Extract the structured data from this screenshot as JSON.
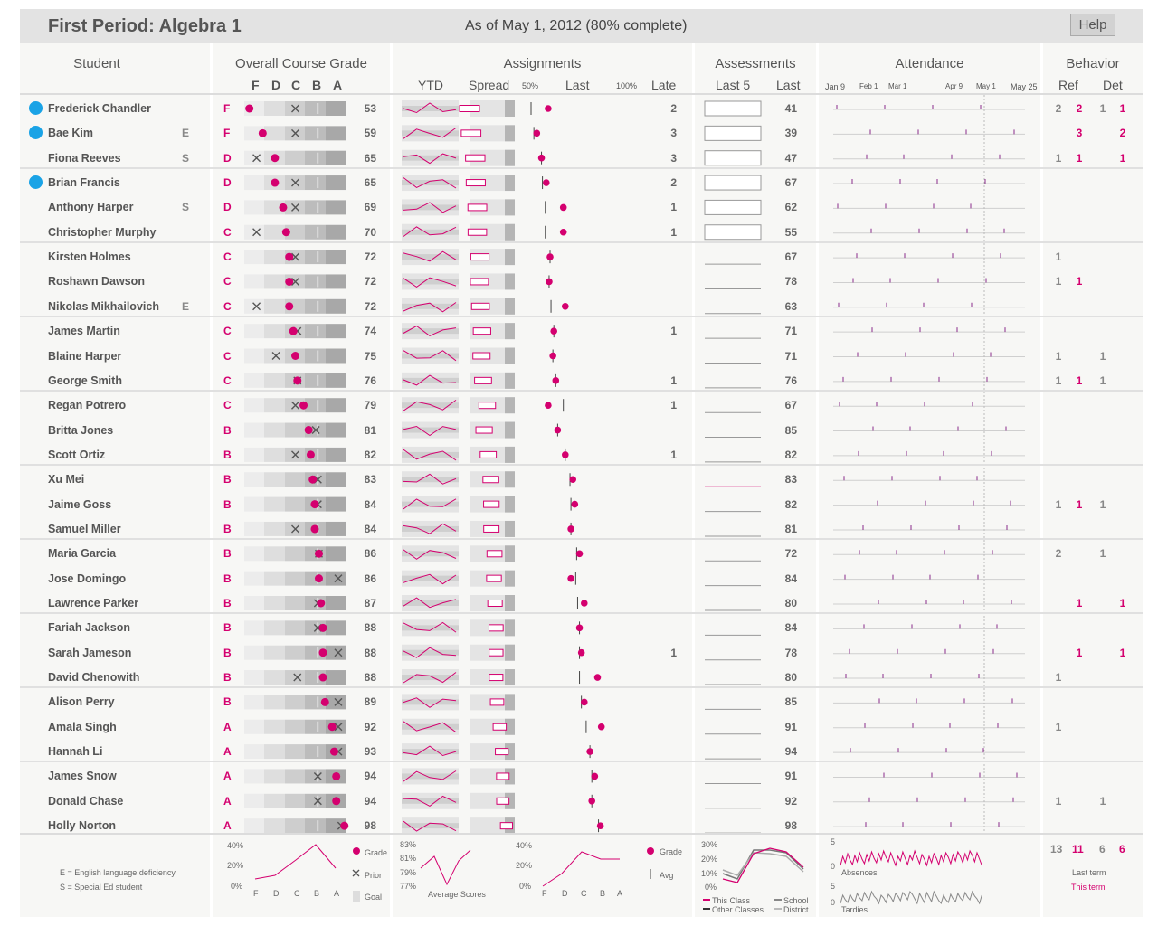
{
  "header": {
    "title": "First Period: Algebra 1",
    "as_of": "As of May 1, 2012  (80% complete)",
    "help_label": "Help"
  },
  "columns": {
    "student": "Student",
    "grade": "Overall Course Grade",
    "grade_letters": [
      "F",
      "D",
      "C",
      "B",
      "A"
    ],
    "assignments": "Assignments",
    "assign_ytd": "YTD",
    "assign_spread": "Spread",
    "assign_50": "50%",
    "assign_last": "Last",
    "assign_100": "100%",
    "assign_late": "Late",
    "assessments": "Assessments",
    "assess_last5": "Last 5",
    "assess_last": "Last",
    "attendance": "Attendance",
    "attendance_dates": [
      "Jan 9",
      "Feb 1",
      "Mar 1",
      "Apr 9",
      "May 1",
      "May 25"
    ],
    "behavior": "Behavior",
    "bhv_ref": "Ref",
    "bhv_det": "Det"
  },
  "students": [
    {
      "name": "Frederick Chandler",
      "attn": true,
      "flag": "",
      "letter": "F",
      "grade": 53,
      "gradePos": 0.05,
      "priorPos": 0.5,
      "late": "2",
      "assess": "41",
      "lastPct": 58,
      "avgPct": 40,
      "ref_last": "2",
      "ref_this": "2",
      "det_last": "1",
      "det_this": "1"
    },
    {
      "name": "Bae Kim",
      "attn": true,
      "flag": "E",
      "letter": "F",
      "grade": 59,
      "gradePos": 0.18,
      "priorPos": 0.5,
      "late": "3",
      "assess": "39",
      "lastPct": 46,
      "avgPct": 43,
      "ref_last": "",
      "ref_this": "3",
      "det_last": "",
      "det_this": "2"
    },
    {
      "name": "Fiona Reeves",
      "attn": false,
      "flag": "S",
      "letter": "D",
      "grade": 65,
      "gradePos": 0.3,
      "priorPos": 0.12,
      "late": "3",
      "assess": "47",
      "lastPct": 51,
      "avgPct": 51,
      "ref_last": "1",
      "ref_this": "1",
      "det_last": "",
      "det_this": "1"
    },
    {
      "name": "Brian Francis",
      "attn": true,
      "flag": "",
      "letter": "D",
      "grade": 65,
      "gradePos": 0.3,
      "priorPos": 0.5,
      "late": "2",
      "assess": "67",
      "lastPct": 56,
      "avgPct": 52,
      "ref_last": "",
      "ref_this": "",
      "det_last": "",
      "det_this": ""
    },
    {
      "name": "Anthony Harper",
      "attn": false,
      "flag": "S",
      "letter": "D",
      "grade": 69,
      "gradePos": 0.38,
      "priorPos": 0.5,
      "late": "1",
      "assess": "62",
      "lastPct": 74,
      "avgPct": 55,
      "ref_last": "",
      "ref_this": "",
      "det_last": "",
      "det_this": ""
    },
    {
      "name": "Christopher Murphy",
      "attn": false,
      "flag": "",
      "letter": "C",
      "grade": 70,
      "gradePos": 0.41,
      "priorPos": 0.12,
      "late": "1",
      "assess": "55",
      "lastPct": 74,
      "avgPct": 55,
      "ref_last": "",
      "ref_this": "",
      "det_last": "",
      "det_this": ""
    },
    {
      "name": "Kirsten Holmes",
      "attn": false,
      "flag": "",
      "letter": "C",
      "grade": 72,
      "gradePos": 0.44,
      "priorPos": 0.5,
      "late": "",
      "assess": "67",
      "lastPct": 60,
      "avgPct": 60,
      "ref_last": "1",
      "ref_this": "",
      "det_last": "",
      "det_this": ""
    },
    {
      "name": "Roshawn Dawson",
      "attn": false,
      "flag": "",
      "letter": "C",
      "grade": 72,
      "gradePos": 0.44,
      "priorPos": 0.5,
      "late": "",
      "assess": "78",
      "lastPct": 59,
      "avgPct": 59,
      "ref_last": "1",
      "ref_this": "1",
      "det_last": "",
      "det_this": ""
    },
    {
      "name": "Nikolas Mikhailovich",
      "attn": false,
      "flag": "E",
      "letter": "C",
      "grade": 72,
      "gradePos": 0.44,
      "priorPos": 0.12,
      "late": "",
      "assess": "63",
      "lastPct": 76,
      "avgPct": 61,
      "ref_last": "",
      "ref_this": "",
      "det_last": "",
      "det_this": ""
    },
    {
      "name": "James Martin",
      "attn": false,
      "flag": "",
      "letter": "C",
      "grade": 74,
      "gradePos": 0.48,
      "priorPos": 0.52,
      "late": "1",
      "assess": "71",
      "lastPct": 64,
      "avgPct": 64,
      "ref_last": "",
      "ref_this": "",
      "det_last": "",
      "det_this": ""
    },
    {
      "name": "Blaine Harper",
      "attn": false,
      "flag": "",
      "letter": "C",
      "grade": 75,
      "gradePos": 0.5,
      "priorPos": 0.31,
      "late": "",
      "assess": "71",
      "lastPct": 63,
      "avgPct": 63,
      "ref_last": "1",
      "ref_this": "",
      "det_last": "1",
      "det_this": ""
    },
    {
      "name": "George Smith",
      "attn": false,
      "flag": "",
      "letter": "C",
      "grade": 76,
      "gradePos": 0.52,
      "priorPos": 0.52,
      "late": "1",
      "assess": "76",
      "lastPct": 66,
      "avgPct": 66,
      "ref_last": "1",
      "ref_this": "1",
      "det_last": "1",
      "det_this": ""
    },
    {
      "name": "Regan Potrero",
      "attn": false,
      "flag": "",
      "letter": "C",
      "grade": 79,
      "gradePos": 0.58,
      "priorPos": 0.5,
      "late": "1",
      "assess": "67",
      "lastPct": 58,
      "avgPct": 74,
      "ref_last": "",
      "ref_this": "",
      "det_last": "",
      "det_this": ""
    },
    {
      "name": "Britta Jones",
      "attn": false,
      "flag": "",
      "letter": "B",
      "grade": 81,
      "gradePos": 0.63,
      "priorPos": 0.7,
      "late": "",
      "assess": "85",
      "lastPct": 68,
      "avgPct": 68,
      "ref_last": "",
      "ref_this": "",
      "det_last": "",
      "det_this": ""
    },
    {
      "name": "Scott Ortiz",
      "attn": false,
      "flag": "",
      "letter": "B",
      "grade": 82,
      "gradePos": 0.65,
      "priorPos": 0.5,
      "late": "1",
      "assess": "82",
      "lastPct": 76,
      "avgPct": 76,
      "ref_last": "",
      "ref_this": "",
      "det_last": "",
      "det_this": ""
    },
    {
      "name": "Xu Mei",
      "attn": false,
      "flag": "",
      "letter": "B",
      "grade": 83,
      "gradePos": 0.67,
      "priorPos": 0.72,
      "late": "",
      "assess": "83",
      "lastPct": 84,
      "avgPct": 81,
      "ref_last": "",
      "ref_this": "",
      "det_last": "",
      "det_this": ""
    },
    {
      "name": "Jaime Goss",
      "attn": false,
      "flag": "",
      "letter": "B",
      "grade": 84,
      "gradePos": 0.69,
      "priorPos": 0.72,
      "late": "",
      "assess": "82",
      "lastPct": 86,
      "avgPct": 82,
      "ref_last": "1",
      "ref_this": "1",
      "det_last": "1",
      "det_this": ""
    },
    {
      "name": "Samuel Miller",
      "attn": false,
      "flag": "",
      "letter": "B",
      "grade": 84,
      "gradePos": 0.69,
      "priorPos": 0.5,
      "late": "",
      "assess": "81",
      "lastPct": 82,
      "avgPct": 82,
      "ref_last": "",
      "ref_this": "",
      "det_last": "",
      "det_this": ""
    },
    {
      "name": "Maria Garcia",
      "attn": false,
      "flag": "",
      "letter": "B",
      "grade": 86,
      "gradePos": 0.73,
      "priorPos": 0.73,
      "late": "",
      "assess": "72",
      "lastPct": 91,
      "avgPct": 88,
      "ref_last": "2",
      "ref_this": "",
      "det_last": "1",
      "det_this": ""
    },
    {
      "name": "Jose Domingo",
      "attn": false,
      "flag": "",
      "letter": "B",
      "grade": 86,
      "gradePos": 0.73,
      "priorPos": 0.92,
      "late": "",
      "assess": "84",
      "lastPct": 82,
      "avgPct": 87,
      "ref_last": "",
      "ref_this": "",
      "det_last": "",
      "det_this": ""
    },
    {
      "name": "Lawrence Parker",
      "attn": false,
      "flag": "",
      "letter": "B",
      "grade": 87,
      "gradePos": 0.75,
      "priorPos": 0.72,
      "late": "",
      "assess": "80",
      "lastPct": 96,
      "avgPct": 89,
      "ref_last": "",
      "ref_this": "1",
      "det_last": "",
      "det_this": "1"
    },
    {
      "name": "Fariah Jackson",
      "attn": false,
      "flag": "",
      "letter": "B",
      "grade": 88,
      "gradePos": 0.77,
      "priorPos": 0.72,
      "late": "",
      "assess": "84",
      "lastPct": 91,
      "avgPct": 91,
      "ref_last": "",
      "ref_this": "",
      "det_last": "",
      "det_this": ""
    },
    {
      "name": "Sarah Jameson",
      "attn": false,
      "flag": "",
      "letter": "B",
      "grade": 88,
      "gradePos": 0.77,
      "priorPos": 0.92,
      "late": "1",
      "assess": "78",
      "lastPct": 93,
      "avgPct": 91,
      "ref_last": "",
      "ref_this": "1",
      "det_last": "",
      "det_this": "1"
    },
    {
      "name": "David Chenowith",
      "attn": false,
      "flag": "",
      "letter": "B",
      "grade": 88,
      "gradePos": 0.77,
      "priorPos": 0.52,
      "late": "",
      "assess": "80",
      "lastPct": 110,
      "avgPct": 91,
      "ref_last": "1",
      "ref_this": "",
      "det_last": "",
      "det_this": ""
    },
    {
      "name": "Alison Perry",
      "attn": false,
      "flag": "",
      "letter": "B",
      "grade": 89,
      "gradePos": 0.79,
      "priorPos": 0.92,
      "late": "",
      "assess": "85",
      "lastPct": 96,
      "avgPct": 93,
      "ref_last": "",
      "ref_this": "",
      "det_last": "",
      "det_this": ""
    },
    {
      "name": "Amala Singh",
      "attn": false,
      "flag": "",
      "letter": "A",
      "grade": 92,
      "gradePos": 0.86,
      "priorPos": 0.92,
      "late": "",
      "assess": "91",
      "lastPct": 114,
      "avgPct": 98,
      "ref_last": "1",
      "ref_this": "",
      "det_last": "",
      "det_this": ""
    },
    {
      "name": "Hannah Li",
      "attn": false,
      "flag": "",
      "letter": "A",
      "grade": 93,
      "gradePos": 0.88,
      "priorPos": 0.92,
      "late": "",
      "assess": "94",
      "lastPct": 102,
      "avgPct": 102,
      "ref_last": "",
      "ref_this": "",
      "det_last": "",
      "det_this": ""
    },
    {
      "name": "James Snow",
      "attn": false,
      "flag": "",
      "letter": "A",
      "grade": 94,
      "gradePos": 0.9,
      "priorPos": 0.72,
      "late": "",
      "assess": "91",
      "lastPct": 107,
      "avgPct": 104,
      "ref_last": "",
      "ref_this": "",
      "det_last": "",
      "det_this": ""
    },
    {
      "name": "Donald Chase",
      "attn": false,
      "flag": "",
      "letter": "A",
      "grade": 94,
      "gradePos": 0.9,
      "priorPos": 0.72,
      "late": "",
      "assess": "92",
      "lastPct": 104,
      "avgPct": 104,
      "ref_last": "1",
      "ref_this": "",
      "det_last": "1",
      "det_this": ""
    },
    {
      "name": "Holly Norton",
      "attn": false,
      "flag": "",
      "letter": "A",
      "grade": 98,
      "gradePos": 0.98,
      "priorPos": 0.95,
      "late": "",
      "assess": "98",
      "lastPct": 113,
      "avgPct": 111,
      "ref_last": "",
      "ref_this": "",
      "det_last": "",
      "det_this": ""
    }
  ],
  "footer": {
    "legend_e": "E = English language deficiency",
    "legend_s": "S = Special Ed student",
    "grade_pct": [
      "40%",
      "20%",
      "0%"
    ],
    "grade_letters": [
      "F",
      "D",
      "C",
      "B",
      "A"
    ],
    "grade_legend": [
      "Grade",
      "Prior",
      "Goal"
    ],
    "assign_pct": [
      "83%",
      "81%",
      "79%",
      "77%"
    ],
    "assign_avg_label": "Average Scores",
    "assign_dist_pct": [
      "40%",
      "20%",
      "0%"
    ],
    "assign_legend": [
      "Grade",
      "Avg"
    ],
    "assess_pct": [
      "30%",
      "20%",
      "10%",
      "0%"
    ],
    "assess_legend": [
      "This Class",
      "School",
      "Other Classes",
      "District"
    ],
    "attend_absences": "Absences",
    "attend_tardies": "Tardies",
    "attend_scale_5": "5",
    "attend_scale_0": "0",
    "bhv_totals": [
      "13",
      "11",
      "6",
      "6"
    ],
    "bhv_last_term": "Last term",
    "bhv_this_term": "This term"
  },
  "colors": {
    "accent": "#d4006f",
    "attention": "#1aa3e6",
    "panel": "#f7f7f5",
    "band_dark": "#a8a8a8",
    "band_light": "#dedede"
  }
}
